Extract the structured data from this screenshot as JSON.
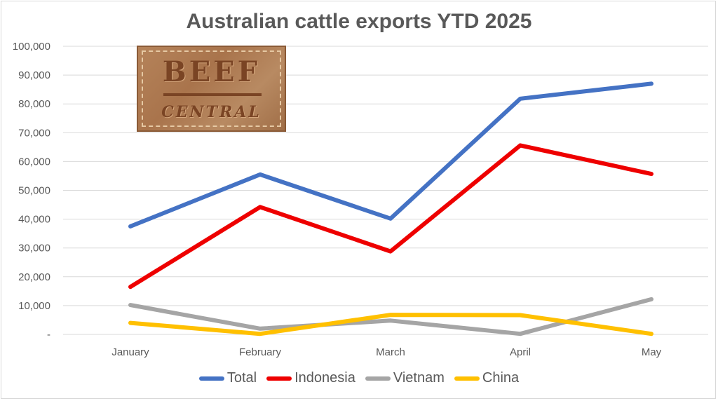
{
  "chart_data": {
    "type": "line",
    "title": "Australian cattle exports YTD 2025",
    "categories": [
      "January",
      "February",
      "March",
      "April",
      "May"
    ],
    "y_tick_labels": [
      "-",
      "10,000",
      "20,000",
      "30,000",
      "40,000",
      "50,000",
      "60,000",
      "70,000",
      "80,000",
      "90,000",
      "100,000"
    ],
    "ylim": [
      0,
      100000
    ],
    "grid": true,
    "legend_position": "bottom",
    "series": [
      {
        "name": "Total",
        "color": "#4472c4",
        "values": [
          37500,
          55500,
          40200,
          81800,
          87000
        ]
      },
      {
        "name": "Indonesia",
        "color": "#ee0000",
        "values": [
          16500,
          44200,
          28800,
          65600,
          55700
        ]
      },
      {
        "name": "Vietnam",
        "color": "#a5a5a5",
        "values": [
          10200,
          2000,
          4800,
          200,
          12200
        ]
      },
      {
        "name": "China",
        "color": "#ffc000",
        "values": [
          4000,
          200,
          6800,
          6700,
          200
        ]
      }
    ]
  },
  "logo": {
    "line1": "BEEF",
    "line2": "CENTRAL"
  }
}
